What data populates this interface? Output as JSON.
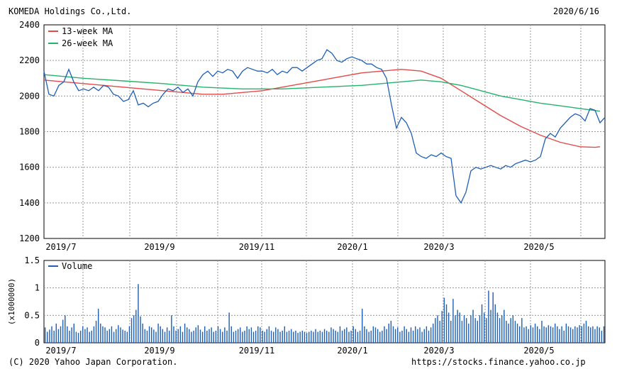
{
  "header": {
    "company": "KOMEDA Holdings Co.,Ltd.",
    "date": "2020/6/16"
  },
  "footer": {
    "copyright": "(C) 2020 Yahoo Japan Corporation.",
    "url": "https://stocks.finance.yahoo.co.jp"
  },
  "colors": {
    "price": "#1f5fb4",
    "ma13": "#e34a4a",
    "ma26": "#24b36b",
    "volume": "#1f5fb4",
    "grid": "#9a9a9a",
    "frame": "#000000"
  },
  "chart_data": [
    {
      "type": "line",
      "x_labels": [
        "2019/7",
        "2019/9",
        "2019/11",
        "2020/1",
        "2020/3",
        "2020/5"
      ],
      "y_ticks": [
        "1200",
        "1400",
        "1600",
        "1800",
        "2000",
        "2200",
        "2400"
      ],
      "ylim": [
        1200,
        2400
      ],
      "grid": true,
      "legend": "top-left",
      "series": [
        {
          "name": "13-week MA",
          "points": [
            [
              0,
              2090
            ],
            [
              4,
              2080
            ],
            [
              8,
              2070
            ],
            [
              12,
              2060
            ],
            [
              16,
              2050
            ],
            [
              20,
              2040
            ],
            [
              24,
              2030
            ],
            [
              28,
              2020
            ],
            [
              32,
              2010
            ],
            [
              36,
              2010
            ],
            [
              40,
              2020
            ],
            [
              44,
              2030
            ],
            [
              48,
              2050
            ],
            [
              52,
              2070
            ],
            [
              56,
              2090
            ],
            [
              60,
              2110
            ],
            [
              64,
              2130
            ],
            [
              68,
              2140
            ],
            [
              72,
              2150
            ],
            [
              76,
              2140
            ],
            [
              80,
              2100
            ],
            [
              84,
              2030
            ],
            [
              88,
              1960
            ],
            [
              92,
              1890
            ],
            [
              96,
              1830
            ],
            [
              100,
              1780
            ],
            [
              104,
              1740
            ],
            [
              108,
              1715
            ],
            [
              111,
              1712
            ],
            [
              112,
              1715
            ]
          ]
        },
        {
          "name": "26-week MA",
          "points": [
            [
              0,
              2120
            ],
            [
              8,
              2100
            ],
            [
              16,
              2085
            ],
            [
              24,
              2070
            ],
            [
              32,
              2050
            ],
            [
              40,
              2040
            ],
            [
              48,
              2040
            ],
            [
              56,
              2050
            ],
            [
              64,
              2060
            ],
            [
              72,
              2080
            ],
            [
              76,
              2090
            ],
            [
              80,
              2080
            ],
            [
              84,
              2060
            ],
            [
              88,
              2030
            ],
            [
              92,
              2000
            ],
            [
              96,
              1980
            ],
            [
              100,
              1960
            ],
            [
              104,
              1945
            ],
            [
              108,
              1930
            ],
            [
              112,
              1915
            ]
          ]
        },
        {
          "name": "Price",
          "points": [
            [
              0,
              2140
            ],
            [
              1,
              2010
            ],
            [
              2,
              2000
            ],
            [
              3,
              2060
            ],
            [
              4,
              2080
            ],
            [
              5,
              2150
            ],
            [
              6,
              2080
            ],
            [
              7,
              2030
            ],
            [
              8,
              2040
            ],
            [
              9,
              2030
            ],
            [
              10,
              2050
            ],
            [
              11,
              2030
            ],
            [
              12,
              2060
            ],
            [
              13,
              2050
            ],
            [
              14,
              2010
            ],
            [
              15,
              2000
            ],
            [
              16,
              1970
            ],
            [
              17,
              1980
            ],
            [
              18,
              2030
            ],
            [
              19,
              1950
            ],
            [
              20,
              1960
            ],
            [
              21,
              1940
            ],
            [
              22,
              1960
            ],
            [
              23,
              1970
            ],
            [
              24,
              2010
            ],
            [
              25,
              2040
            ],
            [
              26,
              2030
            ],
            [
              27,
              2050
            ],
            [
              28,
              2020
            ],
            [
              29,
              2040
            ],
            [
              30,
              2000
            ],
            [
              31,
              2080
            ],
            [
              32,
              2120
            ],
            [
              33,
              2140
            ],
            [
              34,
              2110
            ],
            [
              35,
              2140
            ],
            [
              36,
              2130
            ],
            [
              37,
              2150
            ],
            [
              38,
              2140
            ],
            [
              39,
              2100
            ],
            [
              40,
              2140
            ],
            [
              41,
              2160
            ],
            [
              42,
              2150
            ],
            [
              43,
              2140
            ],
            [
              44,
              2140
            ],
            [
              45,
              2130
            ],
            [
              46,
              2150
            ],
            [
              47,
              2120
            ],
            [
              48,
              2140
            ],
            [
              49,
              2130
            ],
            [
              50,
              2160
            ],
            [
              51,
              2160
            ],
            [
              52,
              2140
            ],
            [
              53,
              2160
            ],
            [
              54,
              2180
            ],
            [
              55,
              2200
            ],
            [
              56,
              2210
            ],
            [
              57,
              2260
            ],
            [
              58,
              2240
            ],
            [
              59,
              2200
            ],
            [
              60,
              2190
            ],
            [
              61,
              2210
            ],
            [
              62,
              2220
            ],
            [
              63,
              2210
            ],
            [
              64,
              2200
            ],
            [
              65,
              2180
            ],
            [
              66,
              2180
            ],
            [
              67,
              2160
            ],
            [
              68,
              2150
            ],
            [
              69,
              2100
            ],
            [
              70,
              1950
            ],
            [
              71,
              1820
            ],
            [
              72,
              1880
            ],
            [
              73,
              1850
            ],
            [
              74,
              1790
            ],
            [
              75,
              1680
            ],
            [
              76,
              1660
            ],
            [
              77,
              1650
            ],
            [
              78,
              1670
            ],
            [
              79,
              1660
            ],
            [
              80,
              1680
            ],
            [
              81,
              1660
            ],
            [
              82,
              1650
            ],
            [
              83,
              1440
            ],
            [
              84,
              1400
            ],
            [
              85,
              1460
            ],
            [
              86,
              1580
            ],
            [
              87,
              1600
            ],
            [
              88,
              1590
            ],
            [
              89,
              1600
            ],
            [
              90,
              1610
            ],
            [
              91,
              1600
            ],
            [
              92,
              1590
            ],
            [
              93,
              1610
            ],
            [
              94,
              1600
            ],
            [
              95,
              1620
            ],
            [
              96,
              1630
            ],
            [
              97,
              1640
            ],
            [
              98,
              1630
            ],
            [
              99,
              1640
            ],
            [
              100,
              1660
            ],
            [
              101,
              1760
            ],
            [
              102,
              1790
            ],
            [
              103,
              1770
            ],
            [
              104,
              1820
            ],
            [
              105,
              1850
            ],
            [
              106,
              1880
            ],
            [
              107,
              1900
            ],
            [
              108,
              1890
            ],
            [
              109,
              1860
            ],
            [
              110,
              1930
            ],
            [
              111,
              1920
            ],
            [
              112,
              1850
            ],
            [
              113,
              1880
            ]
          ]
        }
      ]
    },
    {
      "type": "bar",
      "title": "Volume",
      "ylabel": "(x1000000)",
      "y_ticks": [
        "0",
        "0.5",
        "1",
        "1.5"
      ],
      "ylim": [
        0,
        1.5
      ],
      "series": [
        {
          "name": "Volume",
          "values": [
            0.28,
            0.2,
            0.24,
            0.3,
            0.22,
            0.35,
            0.25,
            0.3,
            0.42,
            0.5,
            0.3,
            0.22,
            0.28,
            0.35,
            0.2,
            0.18,
            0.22,
            0.3,
            0.25,
            0.28,
            0.2,
            0.22,
            0.3,
            0.4,
            0.62,
            0.35,
            0.3,
            0.28,
            0.22,
            0.25,
            0.3,
            0.2,
            0.25,
            0.32,
            0.28,
            0.24,
            0.22,
            0.2,
            0.3,
            0.45,
            0.5,
            0.6,
            1.07,
            0.48,
            0.35,
            0.25,
            0.22,
            0.3,
            0.28,
            0.24,
            0.2,
            0.35,
            0.3,
            0.25,
            0.2,
            0.28,
            0.22,
            0.5,
            0.3,
            0.22,
            0.25,
            0.3,
            0.2,
            0.35,
            0.28,
            0.25,
            0.2,
            0.22,
            0.28,
            0.32,
            0.24,
            0.2,
            0.3,
            0.22,
            0.25,
            0.28,
            0.2,
            0.22,
            0.3,
            0.25,
            0.2,
            0.28,
            0.22,
            0.55,
            0.3,
            0.2,
            0.22,
            0.25,
            0.28,
            0.2,
            0.22,
            0.3,
            0.25,
            0.28,
            0.2,
            0.22,
            0.3,
            0.28,
            0.22,
            0.2,
            0.25,
            0.3,
            0.22,
            0.2,
            0.28,
            0.25,
            0.2,
            0.22,
            0.3,
            0.2,
            0.22,
            0.25,
            0.2,
            0.22,
            0.18,
            0.2,
            0.22,
            0.2,
            0.18,
            0.2,
            0.22,
            0.2,
            0.25,
            0.2,
            0.22,
            0.2,
            0.25,
            0.22,
            0.2,
            0.28,
            0.25,
            0.22,
            0.2,
            0.3,
            0.22,
            0.25,
            0.28,
            0.2,
            0.22,
            0.3,
            0.25,
            0.2,
            0.22,
            0.62,
            0.3,
            0.25,
            0.2,
            0.22,
            0.3,
            0.28,
            0.25,
            0.2,
            0.22,
            0.3,
            0.25,
            0.35,
            0.4,
            0.3,
            0.25,
            0.28,
            0.2,
            0.22,
            0.3,
            0.25,
            0.2,
            0.28,
            0.22,
            0.3,
            0.25,
            0.28,
            0.2,
            0.25,
            0.3,
            0.22,
            0.28,
            0.35,
            0.45,
            0.5,
            0.4,
            0.58,
            0.82,
            0.7,
            0.55,
            0.4,
            0.8,
            0.5,
            0.6,
            0.55,
            0.4,
            0.5,
            0.45,
            0.35,
            0.5,
            0.6,
            0.45,
            0.4,
            0.5,
            0.7,
            0.55,
            0.45,
            0.95,
            0.6,
            0.92,
            0.7,
            0.55,
            0.45,
            0.5,
            0.6,
            0.4,
            0.35,
            0.45,
            0.5,
            0.4,
            0.35,
            0.3,
            0.45,
            0.28,
            0.3,
            0.25,
            0.32,
            0.28,
            0.35,
            0.3,
            0.25,
            0.4,
            0.3,
            0.28,
            0.32,
            0.3,
            0.28,
            0.35,
            0.3,
            0.25,
            0.3,
            0.22,
            0.35,
            0.3,
            0.28,
            0.25,
            0.3,
            0.28,
            0.32,
            0.3,
            0.35,
            0.4,
            0.3,
            0.28,
            0.3,
            0.25,
            0.3,
            0.28,
            0.22,
            0.3
          ]
        }
      ]
    }
  ]
}
